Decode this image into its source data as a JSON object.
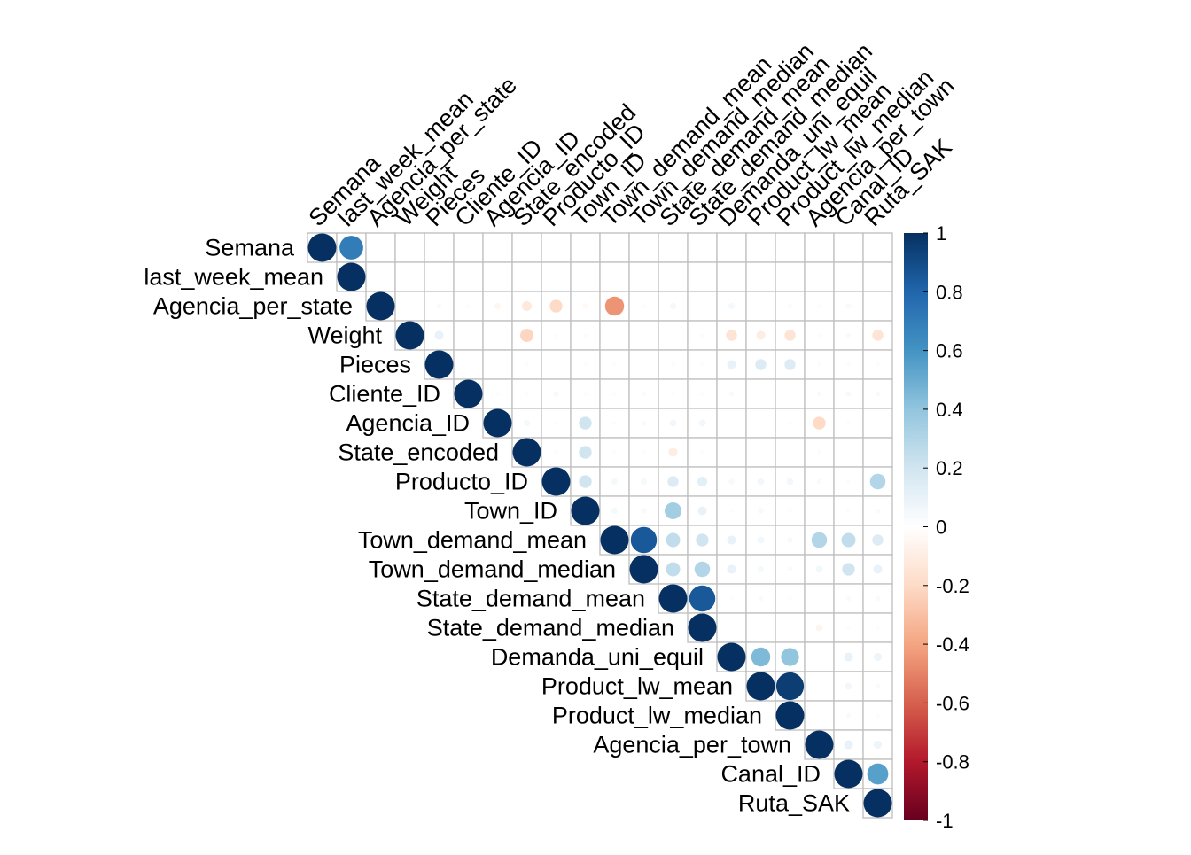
{
  "chart_data": {
    "type": "heatmap",
    "subtype": "correlation-matrix-upper-circles",
    "labels": [
      "Semana",
      "last_week_mean",
      "Agencia_per_state",
      "Weight",
      "Pieces",
      "Cliente_ID",
      "Agencia_ID",
      "State_encoded",
      "Producto_ID",
      "Town_ID",
      "Town_demand_mean",
      "Town_demand_median",
      "State_demand_mean",
      "State_demand_median",
      "Demanda_uni_equil",
      "Product_lw_mean",
      "Product_lw_median",
      "Agencia_per_town",
      "Canal_ID",
      "Ruta_SAK"
    ],
    "matrix": [
      [
        1,
        0.7,
        0,
        0,
        0,
        0,
        0,
        0,
        0,
        0,
        0,
        0,
        0,
        0,
        0,
        0,
        0,
        0,
        0,
        0
      ],
      [
        null,
        1,
        0,
        0,
        0,
        0,
        0,
        0,
        0,
        0,
        0,
        0,
        0,
        0,
        0,
        0,
        0,
        0,
        0,
        0
      ],
      [
        null,
        null,
        1,
        0,
        0.03,
        0.02,
        -0.05,
        -0.12,
        -0.2,
        -0.04,
        -0.45,
        0.02,
        0.05,
        0.01,
        0.05,
        0,
        -0.03,
        0.02,
        -0.04,
        0
      ],
      [
        null,
        null,
        null,
        1,
        0.1,
        0,
        0,
        -0.22,
        0.02,
        0.02,
        0.01,
        0.01,
        0.01,
        0.02,
        -0.15,
        -0.1,
        -0.15,
        0.02,
        0.03,
        -0.15
      ],
      [
        null,
        null,
        null,
        null,
        1,
        0,
        0,
        0.02,
        0,
        0.02,
        0.02,
        0.01,
        0.02,
        0.02,
        0.1,
        0.15,
        0.15,
        0.02,
        0.02,
        0.02
      ],
      [
        null,
        null,
        null,
        null,
        null,
        1,
        0.02,
        0.02,
        0.04,
        0.02,
        0.02,
        -0.03,
        0.02,
        0.02,
        0.03,
        0.01,
        0,
        0.03,
        0.04,
        0.03
      ],
      [
        null,
        null,
        null,
        null,
        null,
        null,
        1,
        0.05,
        0.02,
        0.2,
        0.02,
        0.03,
        0.06,
        0.06,
        0,
        0,
        0.02,
        -0.2,
        0.02,
        0
      ],
      [
        null,
        null,
        null,
        null,
        null,
        null,
        null,
        1,
        0.02,
        0.2,
        0.02,
        0.02,
        -0.1,
        0.02,
        0,
        0,
        0,
        0.02,
        0,
        0
      ],
      [
        null,
        null,
        null,
        null,
        null,
        null,
        null,
        null,
        1,
        0.2,
        0.05,
        0.05,
        0.15,
        0.12,
        0.04,
        0.06,
        0.06,
        0.03,
        0.02,
        0.3
      ],
      [
        null,
        null,
        null,
        null,
        null,
        null,
        null,
        null,
        null,
        1,
        0.05,
        0.04,
        0.35,
        0.1,
        0.02,
        0.04,
        0.02,
        0.01,
        0.02,
        0.03
      ],
      [
        null,
        null,
        null,
        null,
        null,
        null,
        null,
        null,
        null,
        null,
        1,
        0.85,
        0.25,
        0.2,
        0.1,
        0.06,
        0.04,
        0.3,
        0.25,
        0.15
      ],
      [
        null,
        null,
        null,
        null,
        null,
        null,
        null,
        null,
        null,
        null,
        null,
        1,
        0.25,
        0.3,
        0.1,
        0.05,
        0.03,
        0.06,
        0.2,
        0.1
      ],
      [
        null,
        null,
        null,
        null,
        null,
        null,
        null,
        null,
        null,
        null,
        null,
        null,
        1,
        0.85,
        0.02,
        0.03,
        0.02,
        0,
        0.03,
        0.03
      ],
      [
        null,
        null,
        null,
        null,
        null,
        null,
        null,
        null,
        null,
        null,
        null,
        null,
        null,
        1,
        0.01,
        0.01,
        0.01,
        -0.06,
        0.02,
        0.02
      ],
      [
        null,
        null,
        null,
        null,
        null,
        null,
        null,
        null,
        null,
        null,
        null,
        null,
        null,
        null,
        1,
        0.45,
        0.4,
        0,
        0.1,
        0.08
      ],
      [
        null,
        null,
        null,
        null,
        null,
        null,
        null,
        null,
        null,
        null,
        null,
        null,
        null,
        null,
        null,
        1,
        0.95,
        0.01,
        0.06,
        0.03
      ],
      [
        null,
        null,
        null,
        null,
        null,
        null,
        null,
        null,
        null,
        null,
        null,
        null,
        null,
        null,
        null,
        null,
        1,
        0.01,
        0.03,
        0.02
      ],
      [
        null,
        null,
        null,
        null,
        null,
        null,
        null,
        null,
        null,
        null,
        null,
        null,
        null,
        null,
        null,
        null,
        null,
        1,
        0.1,
        0.08
      ],
      [
        null,
        null,
        null,
        null,
        null,
        null,
        null,
        null,
        null,
        null,
        null,
        null,
        null,
        null,
        null,
        null,
        null,
        null,
        1,
        0.55
      ],
      [
        null,
        null,
        null,
        null,
        null,
        null,
        null,
        null,
        null,
        null,
        null,
        null,
        null,
        null,
        null,
        null,
        null,
        null,
        null,
        1
      ]
    ],
    "colorbar": {
      "range": [
        -1,
        1
      ],
      "ticks": [
        "1",
        "0.8",
        "0.6",
        "0.4",
        "0.2",
        "0",
        "-0.2",
        "-0.4",
        "-0.6",
        "-0.8",
        "-1"
      ],
      "colors": [
        "#053061",
        "#2166AC",
        "#4393C3",
        "#92C5DE",
        "#D1E5F0",
        "#FFFFFF",
        "#FDDBC7",
        "#F4A582",
        "#D6604D",
        "#B2182B",
        "#67001F"
      ]
    },
    "grid": true,
    "legend": "right"
  }
}
